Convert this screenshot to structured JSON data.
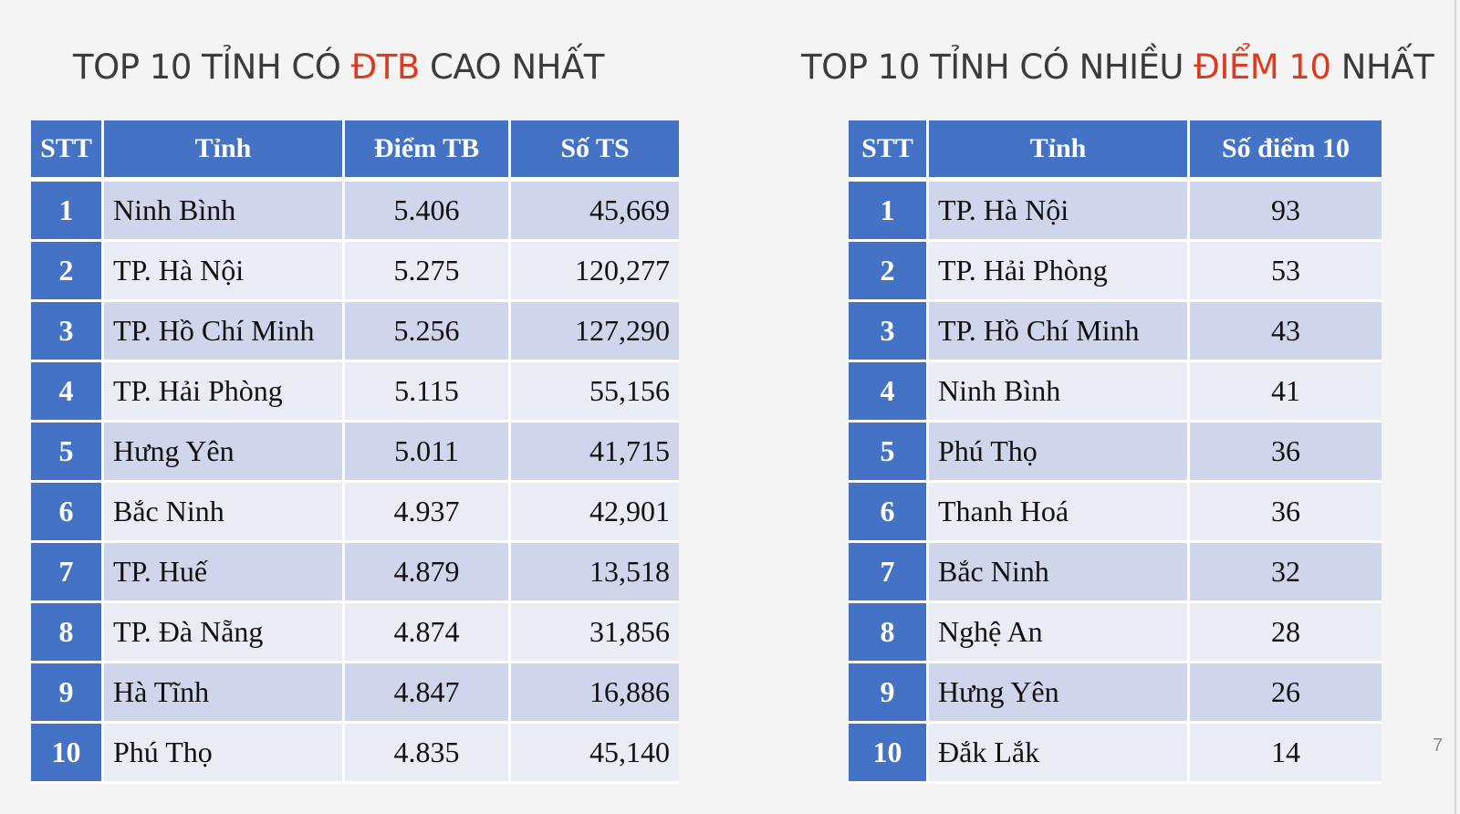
{
  "left": {
    "title_pre": "TOP 10 TỈNH CÓ ",
    "title_hl": "ĐTB",
    "title_post": " CAO NHẤT",
    "headers": [
      "STT",
      "Tỉnh",
      "Điểm TB",
      "Số TS"
    ],
    "rows": [
      {
        "stt": "1",
        "province": "Ninh Bình",
        "avg": "5.406",
        "count": "45,669"
      },
      {
        "stt": "2",
        "province": "TP. Hà Nội",
        "avg": "5.275",
        "count": "120,277"
      },
      {
        "stt": "3",
        "province": "TP. Hồ Chí Minh",
        "avg": "5.256",
        "count": "127,290"
      },
      {
        "stt": "4",
        "province": "TP. Hải Phòng",
        "avg": "5.115",
        "count": "55,156"
      },
      {
        "stt": "5",
        "province": "Hưng Yên",
        "avg": "5.011",
        "count": "41,715"
      },
      {
        "stt": "6",
        "province": "Bắc Ninh",
        "avg": "4.937",
        "count": "42,901"
      },
      {
        "stt": "7",
        "province": "TP. Huế",
        "avg": "4.879",
        "count": "13,518"
      },
      {
        "stt": "8",
        "province": "TP. Đà Nẵng",
        "avg": "4.874",
        "count": "31,856"
      },
      {
        "stt": "9",
        "province": "Hà Tĩnh",
        "avg": "4.847",
        "count": "16,886"
      },
      {
        "stt": "10",
        "province": "Phú Thọ",
        "avg": "4.835",
        "count": "45,140"
      }
    ]
  },
  "right": {
    "title_pre": "TOP 10 TỈNH CÓ NHIỀU ",
    "title_hl": "ĐIỂM 10",
    "title_post": " NHẤT",
    "headers": [
      "STT",
      "Tỉnh",
      "Số điểm 10"
    ],
    "rows": [
      {
        "stt": "1",
        "province": "TP. Hà Nội",
        "tens": "93"
      },
      {
        "stt": "2",
        "province": "TP. Hải Phòng",
        "tens": "53"
      },
      {
        "stt": "3",
        "province": "TP. Hồ Chí Minh",
        "tens": "43"
      },
      {
        "stt": "4",
        "province": "Ninh Bình",
        "tens": "41"
      },
      {
        "stt": "5",
        "province": "Phú Thọ",
        "tens": "36"
      },
      {
        "stt": "6",
        "province": "Thanh Hoá",
        "tens": "36"
      },
      {
        "stt": "7",
        "province": "Bắc Ninh",
        "tens": "32"
      },
      {
        "stt": "8",
        "province": "Nghệ An",
        "tens": "28"
      },
      {
        "stt": "9",
        "province": "Hưng Yên",
        "tens": "26"
      },
      {
        "stt": "10",
        "province": "Đắk Lắk",
        "tens": "14"
      }
    ]
  },
  "page_number": "7",
  "colors": {
    "header_blue": "#4472c4",
    "highlight_red": "#e03a1e",
    "row_dark": "#cfd5ea",
    "row_light": "#e9ebf5"
  }
}
